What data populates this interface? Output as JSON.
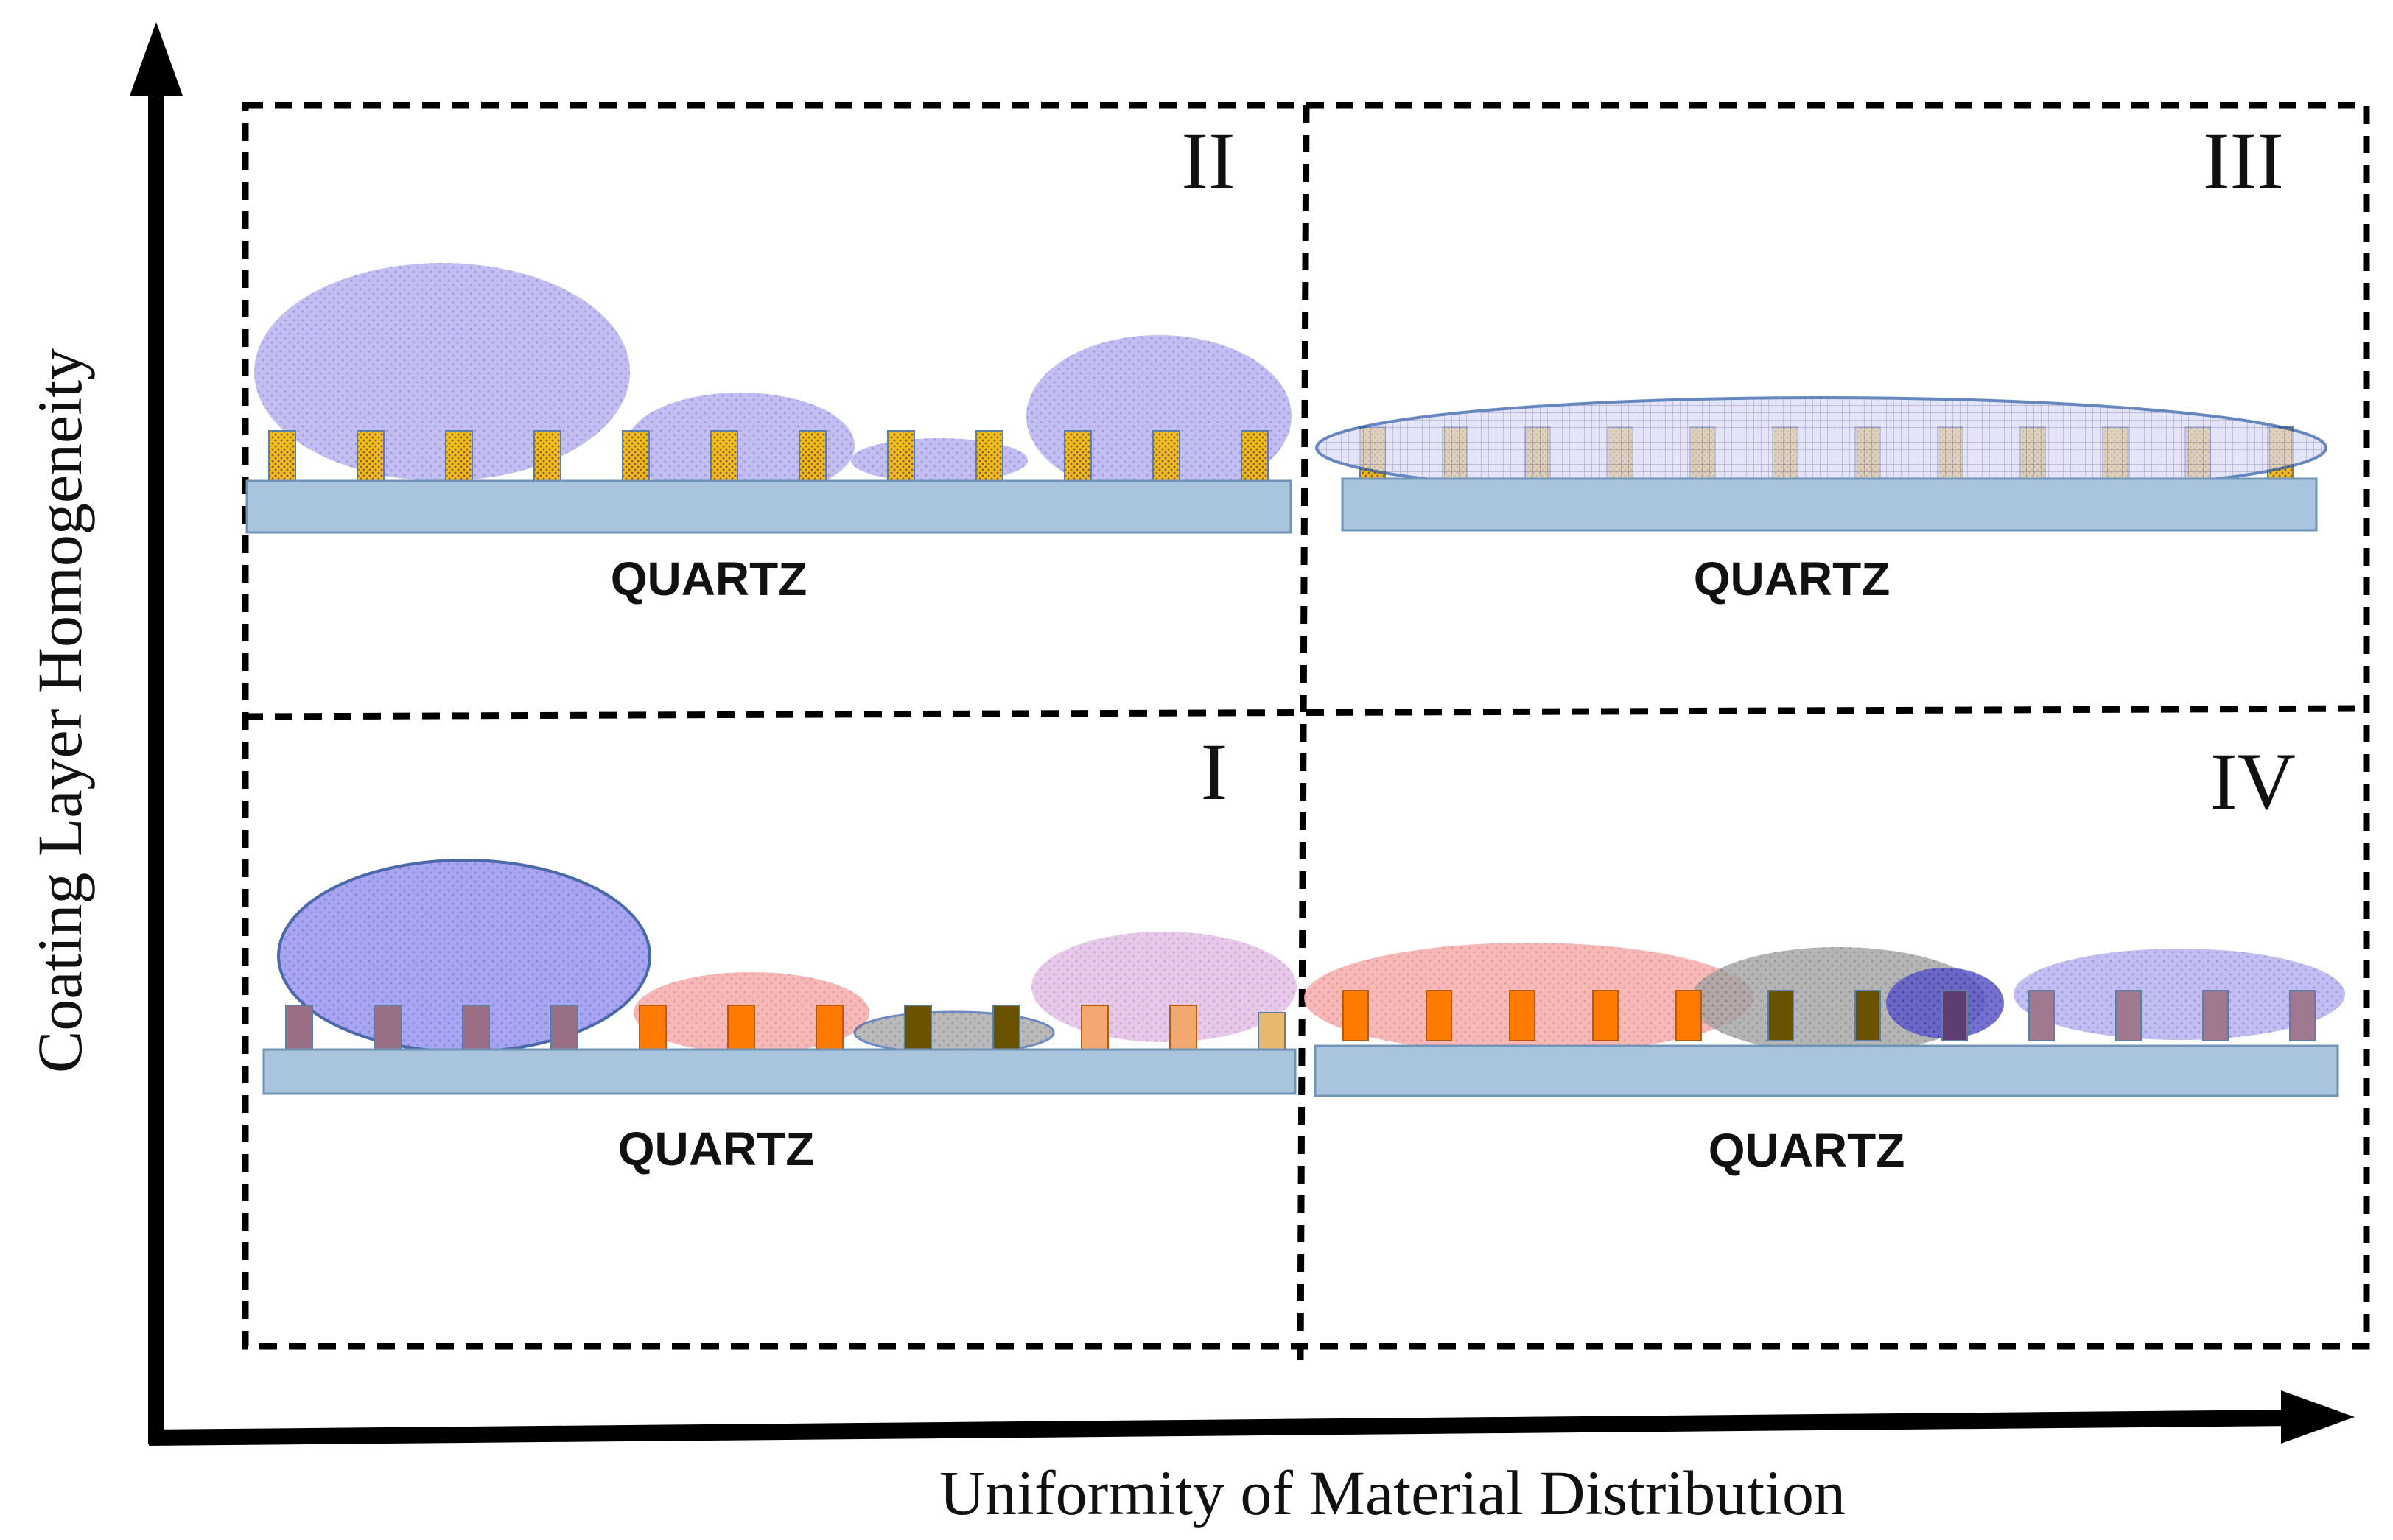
{
  "axes": {
    "x_label": "Uniformity of Material Distribution",
    "y_label": "Coating Layer Homogeneity"
  },
  "quadrants": [
    {
      "id": "II",
      "roman": "II",
      "substrate_label": "QUARTZ",
      "description_key": "nonuniform-homogeneous"
    },
    {
      "id": "III",
      "roman": "III",
      "substrate_label": "QUARTZ",
      "description_key": "uniform-homogeneous"
    },
    {
      "id": "I",
      "roman": "I",
      "substrate_label": "QUARTZ",
      "description_key": "nonuniform-heterogeneous"
    },
    {
      "id": "IV",
      "roman": "IV",
      "substrate_label": "QUARTZ",
      "description_key": "uniform-heterogeneous"
    }
  ],
  "colors": {
    "substrate_fill": "#a9c4dd",
    "substrate_stroke": "#6f94b7",
    "pillar_fill": "#f3bf14",
    "pillar_fill_orange": "#ff7a00",
    "coating_blue": "#a9a4e8",
    "coating_blue_strong": "#8a86ee",
    "coating_pink": "#f4a6a6",
    "coating_mauve": "#dcb0e0",
    "coating_gray": "#9a9a9a",
    "coating_navy": "#4b47b8",
    "axis": "#000000",
    "border": "#000000"
  }
}
